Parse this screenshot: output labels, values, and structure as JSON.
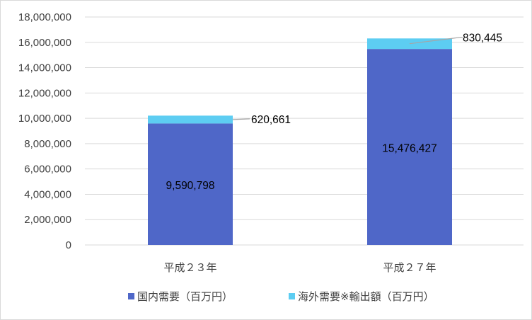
{
  "chart_data": {
    "type": "bar",
    "stacked": true,
    "categories": [
      "平成２３年",
      "平成２７年"
    ],
    "series": [
      {
        "name": "国内需要（百万円）",
        "values": [
          9590798,
          15476427
        ],
        "color": "#4f67c8"
      },
      {
        "name": "海外需要※輸出額（百万円）",
        "values": [
          620661,
          830445
        ],
        "color": "#5dcdf2"
      }
    ],
    "data_labels": [
      [
        "9,590,798",
        "15,476,427"
      ],
      [
        "620,661",
        "830,445"
      ]
    ],
    "yticks": [
      "0",
      "2,000,000",
      "4,000,000",
      "6,000,000",
      "8,000,000",
      "10,000,000",
      "12,000,000",
      "14,000,000",
      "16,000,000",
      "18,000,000"
    ],
    "ylim": [
      0,
      18000000
    ],
    "grid": true,
    "legend_position": "bottom"
  }
}
